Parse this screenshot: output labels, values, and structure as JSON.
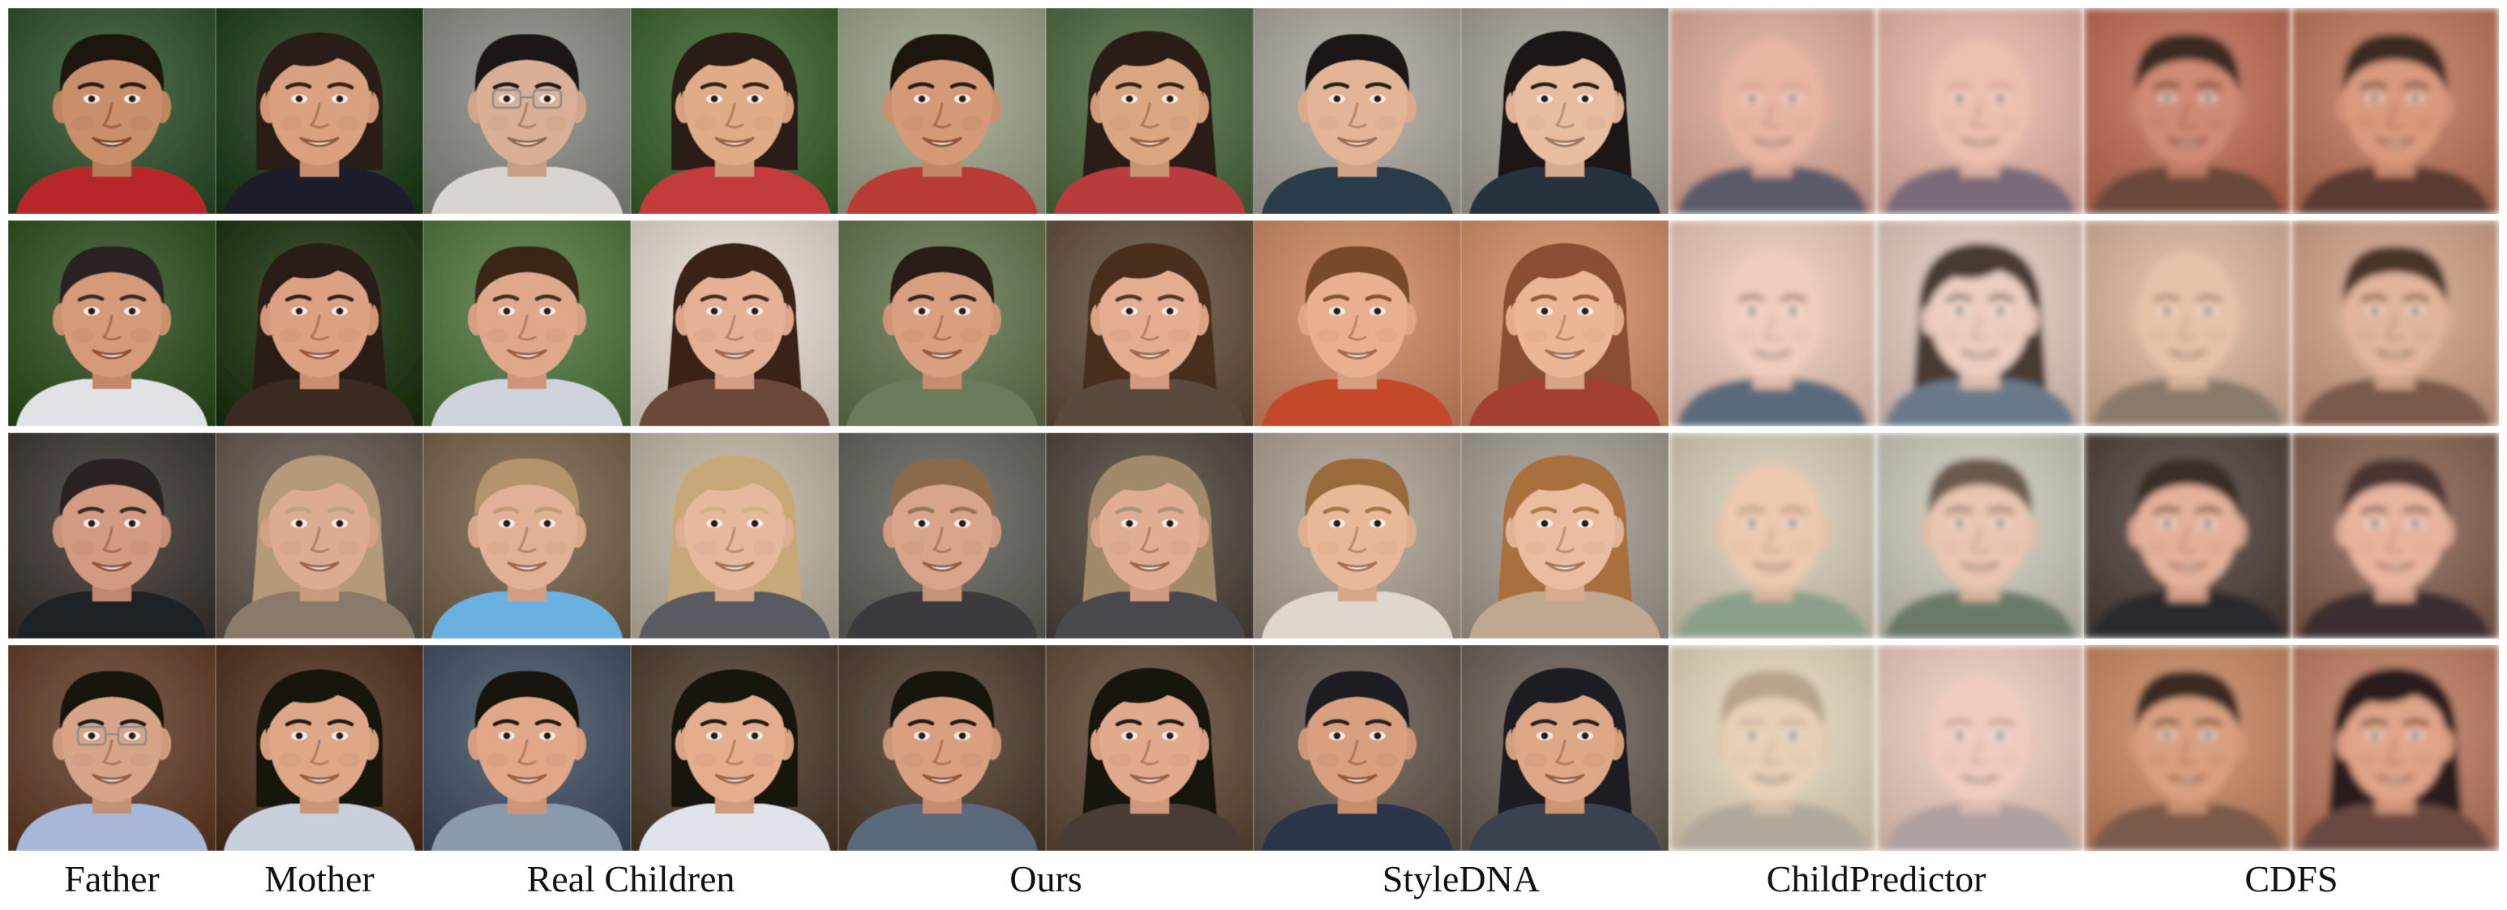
{
  "labels": {
    "father": "Father",
    "mother": "Mother",
    "real_children": "Real Children",
    "ours": "Ours",
    "styledna": "StyleDNA",
    "childpredictor": "ChildPredictor",
    "cdfs": "CDFS"
  },
  "colors": {
    "background": "#ffffff",
    "text": "#111111"
  },
  "rows": [
    {
      "cells": [
        {
          "bg": "#3d5a3a",
          "skin": "#c98e6b",
          "hair": "#1b1410",
          "shirt": "#b8262a",
          "hair_style": "short",
          "glasses": false,
          "blur": false
        },
        {
          "bg": "#2f4a2c",
          "skin": "#d9a17f",
          "hair": "#2a1a12",
          "shirt": "#1d1d2a",
          "hair_style": "bob",
          "glasses": false,
          "blur": false
        },
        {
          "bg": "#8b8b86",
          "skin": "#d9b095",
          "hair": "#1a1412",
          "shirt": "#d8d4cf",
          "hair_style": "short",
          "glasses": true,
          "blur": false
        },
        {
          "bg": "#476a3c",
          "skin": "#e0ab87",
          "hair": "#2a1a12",
          "shirt": "#c43a3a",
          "hair_style": "bob",
          "glasses": false,
          "blur": false
        },
        {
          "bg": "#9aa08a",
          "skin": "#d49a78",
          "hair": "#1b1410",
          "shirt": "#b83a34",
          "hair_style": "short",
          "glasses": false,
          "blur": false
        },
        {
          "bg": "#58704c",
          "skin": "#dba783",
          "hair": "#2a1c14",
          "shirt": "#b83a3e",
          "hair_style": "long",
          "glasses": false,
          "blur": false
        },
        {
          "bg": "#a8a39b",
          "skin": "#e3b496",
          "hair": "#1c1612",
          "shirt": "#2c3a48",
          "hair_style": "short",
          "glasses": false,
          "blur": false
        },
        {
          "bg": "#a39e95",
          "skin": "#e8bc9f",
          "hair": "#1c1612",
          "shirt": "#26323e",
          "hair_style": "long",
          "glasses": false,
          "blur": false
        },
        {
          "bg": "#d4a898",
          "skin": "#e9b6a4",
          "hair": "#c49480",
          "shirt": "#5a5a6a",
          "hair_style": "none",
          "glasses": false,
          "blur": true
        },
        {
          "bg": "#dcb2a4",
          "skin": "#edc0ae",
          "hair": "#c89a88",
          "shirt": "#7a6a7a",
          "hair_style": "none",
          "glasses": false,
          "blur": true
        },
        {
          "bg": "#b8725e",
          "skin": "#cf8a74",
          "hair": "#3a2a22",
          "shirt": "#6a4a3a",
          "hair_style": "short",
          "glasses": false,
          "blur": true
        },
        {
          "bg": "#b87a62",
          "skin": "#d99a7e",
          "hair": "#3a2a22",
          "shirt": "#5a3a30",
          "hair_style": "short",
          "glasses": false,
          "blur": true
        }
      ]
    },
    {
      "cells": [
        {
          "bg": "#3e5a30",
          "skin": "#d59a7a",
          "hair": "#2a2420",
          "shirt": "#e0e2e6",
          "hair_style": "short",
          "glasses": false,
          "blur": false
        },
        {
          "bg": "#2e4224",
          "skin": "#dca082",
          "hair": "#2a1a14",
          "shirt": "#3a2a22",
          "hair_style": "long",
          "glasses": false,
          "blur": false
        },
        {
          "bg": "#5a7a4a",
          "skin": "#e0a88a",
          "hair": "#3a2818",
          "shirt": "#cfd4dc",
          "hair_style": "short",
          "glasses": false,
          "blur": false
        },
        {
          "bg": "#d8d0c6",
          "skin": "#e6b094",
          "hair": "#3a2418",
          "shirt": "#6a4a3a",
          "hair_style": "long",
          "glasses": false,
          "blur": false
        },
        {
          "bg": "#6a7a58",
          "skin": "#d8a080",
          "hair": "#2a1e16",
          "shirt": "#6a7a5a",
          "hair_style": "short",
          "glasses": false,
          "blur": false
        },
        {
          "bg": "#6a5a4a",
          "skin": "#e4ad90",
          "hair": "#4a2e1e",
          "shirt": "#5a4a3e",
          "hair_style": "long",
          "glasses": false,
          "blur": false
        },
        {
          "bg": "#c48a6a",
          "skin": "#e8b090",
          "hair": "#7a4a2a",
          "shirt": "#c44a2a",
          "hair_style": "short",
          "glasses": false,
          "blur": false
        },
        {
          "bg": "#c8906e",
          "skin": "#ebb696",
          "hair": "#8a5030",
          "shirt": "#a44030",
          "hair_style": "long",
          "glasses": false,
          "blur": false
        },
        {
          "bg": "#e0c2b4",
          "skin": "#efcdbd",
          "hair": "#7a5a4a",
          "shirt": "#5a6a7a",
          "hair_style": "none",
          "glasses": false,
          "blur": true
        },
        {
          "bg": "#d8c2b8",
          "skin": "#eccdc0",
          "hair": "#4a3a32",
          "shirt": "#6a7a8a",
          "hair_style": "long",
          "glasses": false,
          "blur": true
        },
        {
          "bg": "#d0b09a",
          "skin": "#e6c2aa",
          "hair": "#8a6a54",
          "shirt": "#8a7a6a",
          "hair_style": "none",
          "glasses": false,
          "blur": true
        },
        {
          "bg": "#c8a08a",
          "skin": "#e2b59c",
          "hair": "#4a3428",
          "shirt": "#7a5a4a",
          "hair_style": "short",
          "glasses": false,
          "blur": true
        }
      ]
    },
    {
      "cells": [
        {
          "bg": "#4a4440",
          "skin": "#d29a80",
          "hair": "#2a2420",
          "shirt": "#1e2228",
          "hair_style": "short",
          "glasses": false,
          "blur": false
        },
        {
          "bg": "#6a6058",
          "skin": "#ddab92",
          "hair": "#b49a78",
          "shirt": "#8a7a6a",
          "hair_style": "curly",
          "glasses": false,
          "blur": false
        },
        {
          "bg": "#7a6a54",
          "skin": "#e2b094",
          "hair": "#b4946a",
          "shirt": "#6ab0e0",
          "hair_style": "short",
          "glasses": false,
          "blur": false
        },
        {
          "bg": "#b8b0a0",
          "skin": "#e6b89c",
          "hair": "#c8a878",
          "shirt": "#5a5a62",
          "hair_style": "long",
          "glasses": false,
          "blur": false
        },
        {
          "bg": "#6a6a64",
          "skin": "#d8a48a",
          "hair": "#8a6a4a",
          "shirt": "#3a3a3e",
          "hair_style": "short",
          "glasses": false,
          "blur": false
        },
        {
          "bg": "#5a524a",
          "skin": "#e0ac92",
          "hair": "#a08a6a",
          "shirt": "#4a4a4e",
          "hair_style": "long",
          "glasses": false,
          "blur": false
        },
        {
          "bg": "#a89e92",
          "skin": "#e8b898",
          "hair": "#9a6a3a",
          "shirt": "#ded6cc",
          "hair_style": "short",
          "glasses": false,
          "blur": false
        },
        {
          "bg": "#a09a90",
          "skin": "#ebbc9e",
          "hair": "#a8703e",
          "shirt": "#c0a890",
          "hair_style": "long",
          "glasses": false,
          "blur": false
        },
        {
          "bg": "#ccc4b0",
          "skin": "#ecc8b0",
          "hair": "#9a8468",
          "shirt": "#8aa08a",
          "hair_style": "none",
          "glasses": false,
          "blur": true
        },
        {
          "bg": "#c4c0b4",
          "skin": "#e8c6b0",
          "hair": "#6a5a4c",
          "shirt": "#6a7a6a",
          "hair_style": "short",
          "glasses": false,
          "blur": true
        },
        {
          "bg": "#5a4e48",
          "skin": "#e4b09a",
          "hair": "#3a2e28",
          "shirt": "#2a2a2e",
          "hair_style": "short",
          "glasses": false,
          "blur": true
        },
        {
          "bg": "#8a6a5a",
          "skin": "#e8b4a0",
          "hair": "#4a3430",
          "shirt": "#3a2e30",
          "hair_style": "short",
          "glasses": false,
          "blur": true
        }
      ]
    },
    {
      "cells": [
        {
          "bg": "#6a4a38",
          "skin": "#d8a488",
          "hair": "#141210",
          "shirt": "#a8b8d8",
          "hair_style": "short",
          "glasses": true,
          "blur": false
        },
        {
          "bg": "#5a4030",
          "skin": "#dea888",
          "hair": "#141210",
          "shirt": "#c8d0dc",
          "hair_style": "bob",
          "glasses": false,
          "blur": false
        },
        {
          "bg": "#4e5a6a",
          "skin": "#e0a888",
          "hair": "#141210",
          "shirt": "#8a9aaa",
          "hair_style": "short",
          "glasses": false,
          "blur": false
        },
        {
          "bg": "#5a4a3e",
          "skin": "#e4ae8e",
          "hair": "#141210",
          "shirt": "#e0e4ea",
          "hair_style": "bob",
          "glasses": false,
          "blur": false
        },
        {
          "bg": "#5a4a3e",
          "skin": "#d8a080",
          "hair": "#141210",
          "shirt": "#5a6a7a",
          "hair_style": "short",
          "glasses": false,
          "blur": false
        },
        {
          "bg": "#6a5646",
          "skin": "#e2aa8c",
          "hair": "#141210",
          "shirt": "#4a3a36",
          "hair_style": "long",
          "glasses": false,
          "blur": false
        },
        {
          "bg": "#6a6058",
          "skin": "#d8a07e",
          "hair": "#1c1a20",
          "shirt": "#2a3448",
          "hair_style": "short",
          "glasses": false,
          "blur": false
        },
        {
          "bg": "#706860",
          "skin": "#dea886",
          "hair": "#1c1a20",
          "shirt": "#3a4250",
          "hair_style": "long",
          "glasses": false,
          "blur": false
        },
        {
          "bg": "#d8ccb4",
          "skin": "#e6d0b6",
          "hair": "#b8a48a",
          "shirt": "#b0a89a",
          "hair_style": "short",
          "glasses": false,
          "blur": true
        },
        {
          "bg": "#e0c4b8",
          "skin": "#efccc0",
          "hair": "#a88a7a",
          "shirt": "#b0a0a0",
          "hair_style": "none",
          "glasses": false,
          "blur": true
        },
        {
          "bg": "#c08a6a",
          "skin": "#d8a080",
          "hair": "#3a2a20",
          "shirt": "#7a5a48",
          "hair_style": "short",
          "glasses": false,
          "blur": true
        },
        {
          "bg": "#b8806a",
          "skin": "#e0a488",
          "hair": "#2a1e1a",
          "shirt": "#6a4a40",
          "hair_style": "long",
          "glasses": false,
          "blur": true
        }
      ]
    }
  ]
}
